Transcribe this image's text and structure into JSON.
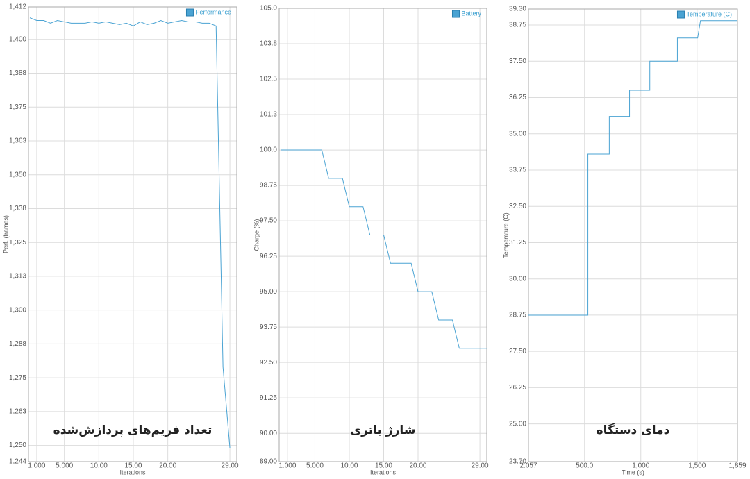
{
  "chart_data": [
    {
      "type": "line",
      "annotation": "تعداد فریم‌های پردازش‌شده",
      "x_label": "Iterations",
      "y_label": "Perf. (frames)",
      "x": [
        0,
        1,
        2,
        3,
        4,
        5,
        6,
        7,
        8,
        9,
        10,
        11,
        12,
        13,
        14,
        15,
        16,
        17,
        18,
        19,
        20,
        21,
        22,
        23,
        24,
        25,
        26,
        27,
        28,
        29,
        30
      ],
      "series": [
        {
          "name": "Performance",
          "color": "#4aa3d3",
          "values": [
            1408,
            1407,
            1407,
            1406,
            1407,
            1406.5,
            1406,
            1406,
            1406,
            1406.5,
            1406,
            1406.5,
            1406,
            1405.5,
            1406,
            1405,
            1406.5,
            1405.5,
            1406,
            1407,
            1406,
            1406.5,
            1407,
            1406.5,
            1406.5,
            1406,
            1406,
            1405,
            1279,
            1249,
            1249
          ]
        }
      ],
      "xlim": [
        -0.2,
        30
      ],
      "ylim": [
        1244,
        1412
      ],
      "xticks": [
        {
          "value": 1,
          "label": "1.000"
        },
        {
          "value": 5,
          "label": "5.000"
        },
        {
          "value": 10,
          "label": "10.00"
        },
        {
          "value": 15,
          "label": "15.00"
        },
        {
          "value": 20,
          "label": "20.00"
        },
        {
          "value": 29,
          "label": "29.00"
        }
      ],
      "yticks": [
        {
          "value": 1244,
          "label": "1,244"
        },
        {
          "value": 1250,
          "label": "1,250"
        },
        {
          "value": 1262.5,
          "label": "1,263"
        },
        {
          "value": 1275,
          "label": "1,275"
        },
        {
          "value": 1287.5,
          "label": "1,288"
        },
        {
          "value": 1300,
          "label": "1,300"
        },
        {
          "value": 1312.5,
          "label": "1,313"
        },
        {
          "value": 1325,
          "label": "1,325"
        },
        {
          "value": 1337.5,
          "label": "1,338"
        },
        {
          "value": 1350,
          "label": "1,350"
        },
        {
          "value": 1362.5,
          "label": "1,363"
        },
        {
          "value": 1375,
          "label": "1,375"
        },
        {
          "value": 1387.5,
          "label": "1,388"
        },
        {
          "value": 1400,
          "label": "1,400"
        },
        {
          "value": 1412,
          "label": "1,412"
        }
      ],
      "grid": true,
      "legend": "upper right"
    },
    {
      "type": "line",
      "annotation": "شارژ باتری",
      "x_label": "Iterations",
      "y_label": "Charge (%)",
      "x": [
        0,
        1,
        2,
        3,
        4,
        5,
        6,
        7,
        8,
        9,
        10,
        11,
        12,
        13,
        14,
        15,
        16,
        17,
        18,
        19,
        20,
        21,
        22,
        23,
        24,
        25,
        26,
        27,
        28,
        29,
        30
      ],
      "series": [
        {
          "name": "Battery",
          "color": "#4aa3d3",
          "values": [
            100,
            100,
            100,
            100,
            100,
            100,
            100,
            99,
            99,
            99,
            98,
            98,
            98,
            97,
            97,
            97,
            96,
            96,
            96,
            96,
            95,
            95,
            95,
            94,
            94,
            94,
            93,
            93,
            93,
            93,
            93
          ]
        }
      ],
      "xlim": [
        -0.2,
        30
      ],
      "ylim": [
        89,
        105
      ],
      "xticks": [
        {
          "value": 1,
          "label": "1.000"
        },
        {
          "value": 5,
          "label": "5.000"
        },
        {
          "value": 10,
          "label": "10.00"
        },
        {
          "value": 15,
          "label": "15.00"
        },
        {
          "value": 20,
          "label": "20.00"
        },
        {
          "value": 29,
          "label": "29.00"
        }
      ],
      "yticks": [
        {
          "value": 89,
          "label": "89.00"
        },
        {
          "value": 90,
          "label": "90.00"
        },
        91.25,
        {
          "value": 92.5,
          "label": "92.50"
        },
        93.75,
        {
          "value": 95,
          "label": "95.00"
        },
        96.25,
        {
          "value": 97.5,
          "label": "97.50"
        },
        98.75,
        {
          "value": 100,
          "label": "100.0"
        },
        {
          "value": 101.25,
          "label": "101.3"
        },
        102.5,
        {
          "value": 103.75,
          "label": "103.8"
        },
        {
          "value": 105,
          "label": "105.0"
        }
      ],
      "grid": true,
      "legend": "upper right"
    },
    {
      "type": "line",
      "annotation": "دمای دستگاه",
      "x_label": "Time (s)",
      "y_label": "Temperature (C)",
      "x": [
        2.057,
        530,
        530,
        720,
        720,
        900,
        900,
        1080,
        1080,
        1325,
        1325,
        1505,
        1530,
        1859
      ],
      "series": [
        {
          "name": "Temperature (C)",
          "color": "#4aa3d3",
          "values": [
            28.75,
            28.75,
            34.3,
            34.3,
            35.6,
            35.6,
            36.5,
            36.5,
            37.5,
            37.5,
            38.3,
            38.3,
            38.9,
            38.9
          ]
        }
      ],
      "xlim": [
        2.057,
        1859
      ],
      "ylim": [
        23.7,
        39.3
      ],
      "xticks": [
        2.057,
        {
          "value": 500,
          "label": "500.0"
        },
        {
          "value": 1000,
          "label": "1,000"
        },
        {
          "value": 1500,
          "label": "1,500"
        },
        {
          "value": 1859,
          "label": "1,859"
        }
      ],
      "yticks": [
        {
          "value": 23.7,
          "label": "23.70"
        },
        {
          "value": 25,
          "label": "25.00"
        },
        26.25,
        {
          "value": 27.5,
          "label": "27.50"
        },
        28.75,
        {
          "value": 30,
          "label": "30.00"
        },
        31.25,
        {
          "value": 32.5,
          "label": "32.50"
        },
        33.75,
        {
          "value": 35,
          "label": "35.00"
        },
        36.25,
        {
          "value": 37.5,
          "label": "37.50"
        },
        38.75,
        {
          "value": 39.3,
          "label": "39.30"
        }
      ],
      "grid": true,
      "legend": "upper right"
    }
  ]
}
